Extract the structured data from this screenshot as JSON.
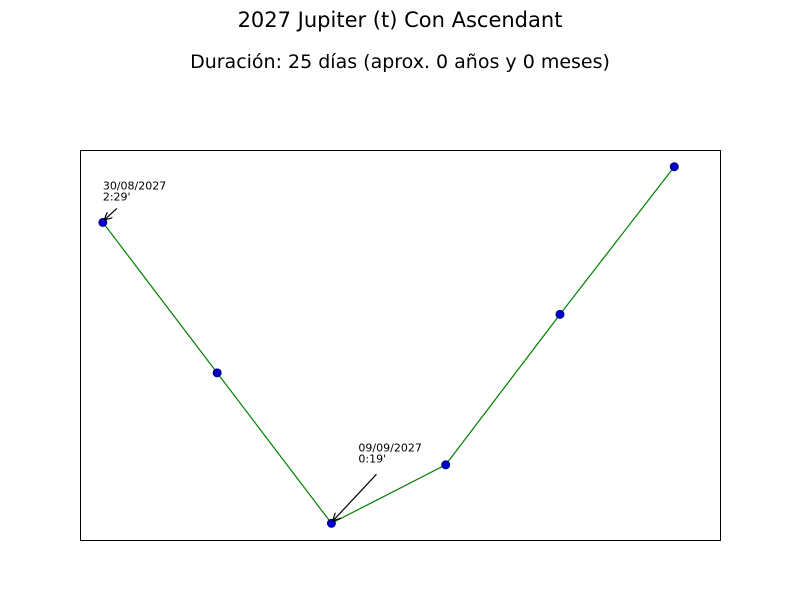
{
  "title": "2027 Jupiter (t) Con Ascendant",
  "subtitle": "Duración: 25 días (aprox. 0 años y 0 meses)",
  "chart_data": {
    "type": "line",
    "x": [
      "2027-08-30",
      "2027-09-04",
      "2027-09-09",
      "2027-09-14",
      "2027-09-19",
      "2027-09-24"
    ],
    "series": [
      {
        "values": [
          2.48,
          1.4,
          0.32,
          0.74,
          1.82,
          2.88
        ]
      }
    ],
    "ylim": [
      3.0,
      0.2
    ],
    "xlim": [
      "2027-08-29",
      "2027-09-26"
    ],
    "y_inverted": true,
    "axes_ticks_visible": false,
    "grid": false,
    "line_color": "#008000",
    "marker_color": "#0000cc",
    "marker_edge_color": "#000080",
    "annotations": [
      {
        "point_index": 0,
        "date": "30/08/2027",
        "value": "2:29'"
      },
      {
        "point_index": 2,
        "date": "09/09/2027",
        "value": "0:19'"
      }
    ]
  }
}
